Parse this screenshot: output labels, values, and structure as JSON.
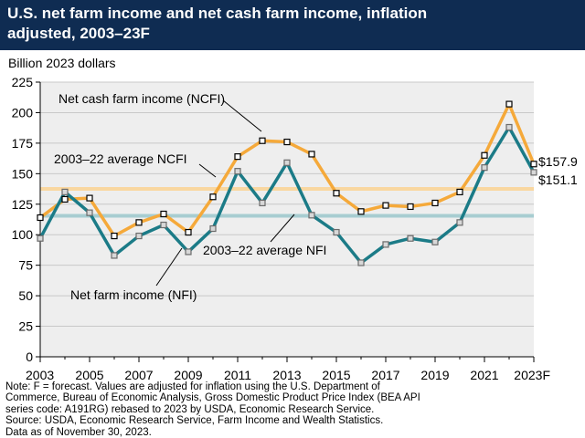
{
  "header": {
    "title_line1": "U.S. net farm income and net cash farm income, inflation",
    "title_line2": "adjusted, 2003–23F"
  },
  "footnote": {
    "line1": "Note: F = forecast. Values are adjusted for inflation using the U.S. Department of",
    "line2": "Commerce, Bureau of Economic Analysis, Gross Domestic Product Price Index (BEA API",
    "line3": "series code: A191RG) rebased to 2023 by USDA, Economic Research Service.",
    "line4": "Source: USDA, Economic Research Service, Farm Income and Wealth Statistics.",
    "line5": "Data as of November 30, 2023."
  },
  "chart_data": {
    "type": "line",
    "ylabel": "Billion 2023 dollars",
    "ylim": [
      0,
      225
    ],
    "yticks": [
      0,
      25,
      50,
      75,
      100,
      125,
      150,
      175,
      200,
      225
    ],
    "x": [
      2003,
      2004,
      2005,
      2006,
      2007,
      2008,
      2009,
      2010,
      2011,
      2012,
      2013,
      2014,
      2015,
      2016,
      2017,
      2018,
      2019,
      2020,
      2021,
      2022,
      2023
    ],
    "xtick_labels": [
      "2003",
      "2005",
      "2007",
      "2009",
      "2011",
      "2013",
      "2015",
      "2017",
      "2019",
      "2021",
      "2023F"
    ],
    "grid": "horizontal",
    "colors": {
      "ncfi": "#f5a93a",
      "nfi": "#1b7b87",
      "ncfi_avg": "#f9d7a0",
      "nfi_avg": "#a7cdd1",
      "plot_bg": "#eeeeee",
      "header_bg": "#0f2c52"
    },
    "series": [
      {
        "name": "Net cash farm income (NCFI)",
        "marker": "square-dark",
        "values": [
          114,
          129,
          130,
          99,
          110,
          117,
          102,
          131,
          164,
          177,
          176,
          166,
          134,
          119,
          124,
          123,
          126,
          135,
          165,
          207,
          157.9
        ]
      },
      {
        "name": "Net farm income (NFI)",
        "marker": "square-light",
        "values": [
          97,
          135,
          118,
          83,
          99,
          108,
          86,
          105,
          152,
          126,
          159,
          116,
          102,
          77,
          92,
          97,
          94,
          110,
          155,
          188,
          151.1
        ]
      }
    ],
    "reference_lines": [
      {
        "name": "2003–22 average NCFI",
        "value": 137.5
      },
      {
        "name": "2003–22 average NFI",
        "value": 115.5
      }
    ],
    "end_labels": [
      "$157.9",
      "$151.1"
    ]
  }
}
